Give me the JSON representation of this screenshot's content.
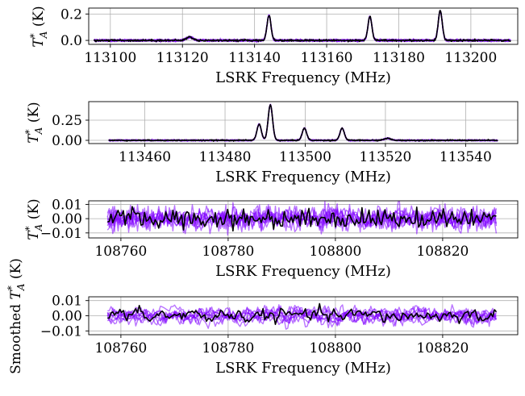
{
  "chart_data": [
    {
      "type": "line",
      "xlabel": "LSRK Frequency (MHz)",
      "ylabel": "T*A (K)",
      "xlim": [
        113094,
        113213
      ],
      "ylim": [
        -0.03,
        0.245
      ],
      "xticks": [
        113100,
        113120,
        113140,
        113160,
        113180,
        113200
      ],
      "xtick_labels": [
        "113100",
        "113120",
        "113140",
        "113160",
        "113180",
        "113200"
      ],
      "yticks": [
        0.0,
        0.2
      ],
      "ytick_labels": [
        "0.0",
        "0.2"
      ],
      "grid": true,
      "x_range": [
        113095.5,
        113211
      ],
      "noise": 0.004,
      "lines": [
        {
          "center": 113122,
          "amp": 0.025,
          "width": 0.9
        },
        {
          "center": 113144,
          "amp": 0.19,
          "width": 0.55
        },
        {
          "center": 113172,
          "amp": 0.18,
          "width": 0.55
        },
        {
          "center": 113191.5,
          "amp": 0.225,
          "width": 0.55
        }
      ],
      "series": [
        {
          "role": "model-samples",
          "color": "#8000ff",
          "count": 8
        },
        {
          "role": "data",
          "color": "#000000"
        }
      ]
    },
    {
      "type": "line",
      "xlabel": "LSRK Frequency (MHz)",
      "ylabel": "T*A (K)",
      "xlim": [
        113446,
        113553
      ],
      "ylim": [
        -0.04,
        0.48
      ],
      "xticks": [
        113460,
        113480,
        113500,
        113520,
        113540
      ],
      "xtick_labels": [
        "113460",
        "113480",
        "113500",
        "113520",
        "113540"
      ],
      "yticks": [
        0.0,
        0.25
      ],
      "ytick_labels": [
        "0.00",
        "0.25"
      ],
      "grid": true,
      "x_range": [
        113451,
        113548
      ],
      "noise": 0.004,
      "lines": [
        {
          "center": 113488.5,
          "amp": 0.2,
          "width": 0.55
        },
        {
          "center": 113491.3,
          "amp": 0.44,
          "width": 0.55
        },
        {
          "center": 113499.8,
          "amp": 0.15,
          "width": 0.55
        },
        {
          "center": 113509.2,
          "amp": 0.15,
          "width": 0.55
        },
        {
          "center": 113520.5,
          "amp": 0.025,
          "width": 0.8
        }
      ],
      "series": [
        {
          "role": "model-samples",
          "color": "#8000ff",
          "count": 8
        },
        {
          "role": "data",
          "color": "#000000"
        }
      ]
    },
    {
      "type": "line",
      "xlabel": "LSRK Frequency (MHz)",
      "ylabel": "T*A (K)",
      "xlim": [
        108754,
        108834
      ],
      "ylim": [
        -0.0135,
        0.0125
      ],
      "xticks": [
        108760,
        108780,
        108800,
        108820
      ],
      "xtick_labels": [
        "108760",
        "108780",
        "108800",
        "108820"
      ],
      "yticks": [
        -0.01,
        0.0,
        0.01
      ],
      "ytick_labels": [
        "−0.01",
        "0.00",
        "0.01"
      ],
      "grid": true,
      "x_range": [
        108757.5,
        108830
      ],
      "noise": 0.0038,
      "lines": [],
      "series": [
        {
          "role": "model-samples",
          "color": "#8000ff",
          "count": 8
        },
        {
          "role": "data",
          "color": "#000000"
        }
      ]
    },
    {
      "type": "line",
      "xlabel": "LSRK Frequency (MHz)",
      "ylabel": "Smoothed T*A (K)",
      "xlim": [
        108754,
        108834
      ],
      "ylim": [
        -0.0125,
        0.0125
      ],
      "xticks": [
        108760,
        108780,
        108800,
        108820
      ],
      "xtick_labels": [
        "108760",
        "108780",
        "108800",
        "108820"
      ],
      "yticks": [
        -0.01,
        0.0,
        0.01
      ],
      "ytick_labels": [
        "−0.01",
        "0.00",
        "0.01"
      ],
      "grid": true,
      "x_range": [
        108757.5,
        108830
      ],
      "noise": 0.0028,
      "lines": [],
      "series": [
        {
          "role": "model-samples",
          "color": "#8000ff",
          "count": 8
        },
        {
          "role": "data",
          "color": "#000000"
        }
      ]
    }
  ]
}
